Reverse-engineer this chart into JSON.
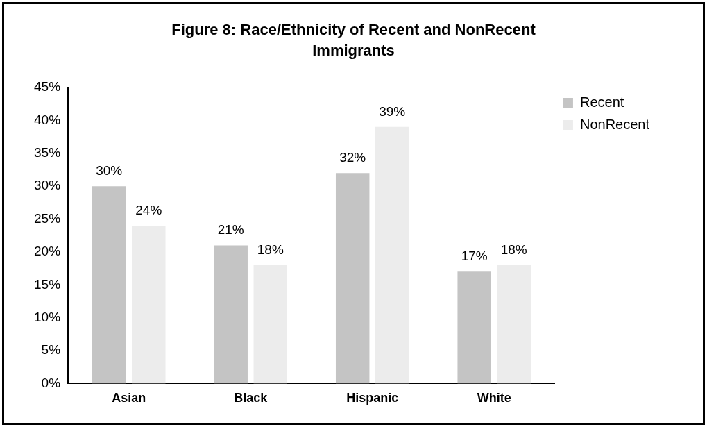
{
  "chart_data": {
    "type": "bar",
    "title": "Figure 8: Race/Ethnicity of Recent and NonRecent Immigrants",
    "categories": [
      "Asian",
      "Black",
      "Hispanic",
      "White"
    ],
    "series": [
      {
        "name": "Recent",
        "color": "#c4c4c4",
        "values": [
          30,
          21,
          32,
          17
        ],
        "value_labels": [
          "30%",
          "21%",
          "32%",
          "17%"
        ]
      },
      {
        "name": "NonRecent",
        "color": "#ececec",
        "values": [
          24,
          18,
          39,
          18
        ],
        "value_labels": [
          "24%",
          "18%",
          "39%",
          "18%"
        ]
      }
    ],
    "ylim": [
      0,
      45
    ],
    "yticks": [
      {
        "value": 0,
        "label": "0%"
      },
      {
        "value": 5,
        "label": "5%"
      },
      {
        "value": 10,
        "label": "10%"
      },
      {
        "value": 15,
        "label": "15%"
      },
      {
        "value": 20,
        "label": "20%"
      },
      {
        "value": 25,
        "label": "25%"
      },
      {
        "value": 30,
        "label": "30%"
      },
      {
        "value": 35,
        "label": "35%"
      },
      {
        "value": 40,
        "label": "40%"
      },
      {
        "value": 45,
        "label": "45%"
      }
    ],
    "grid": false,
    "legend": "top right"
  }
}
